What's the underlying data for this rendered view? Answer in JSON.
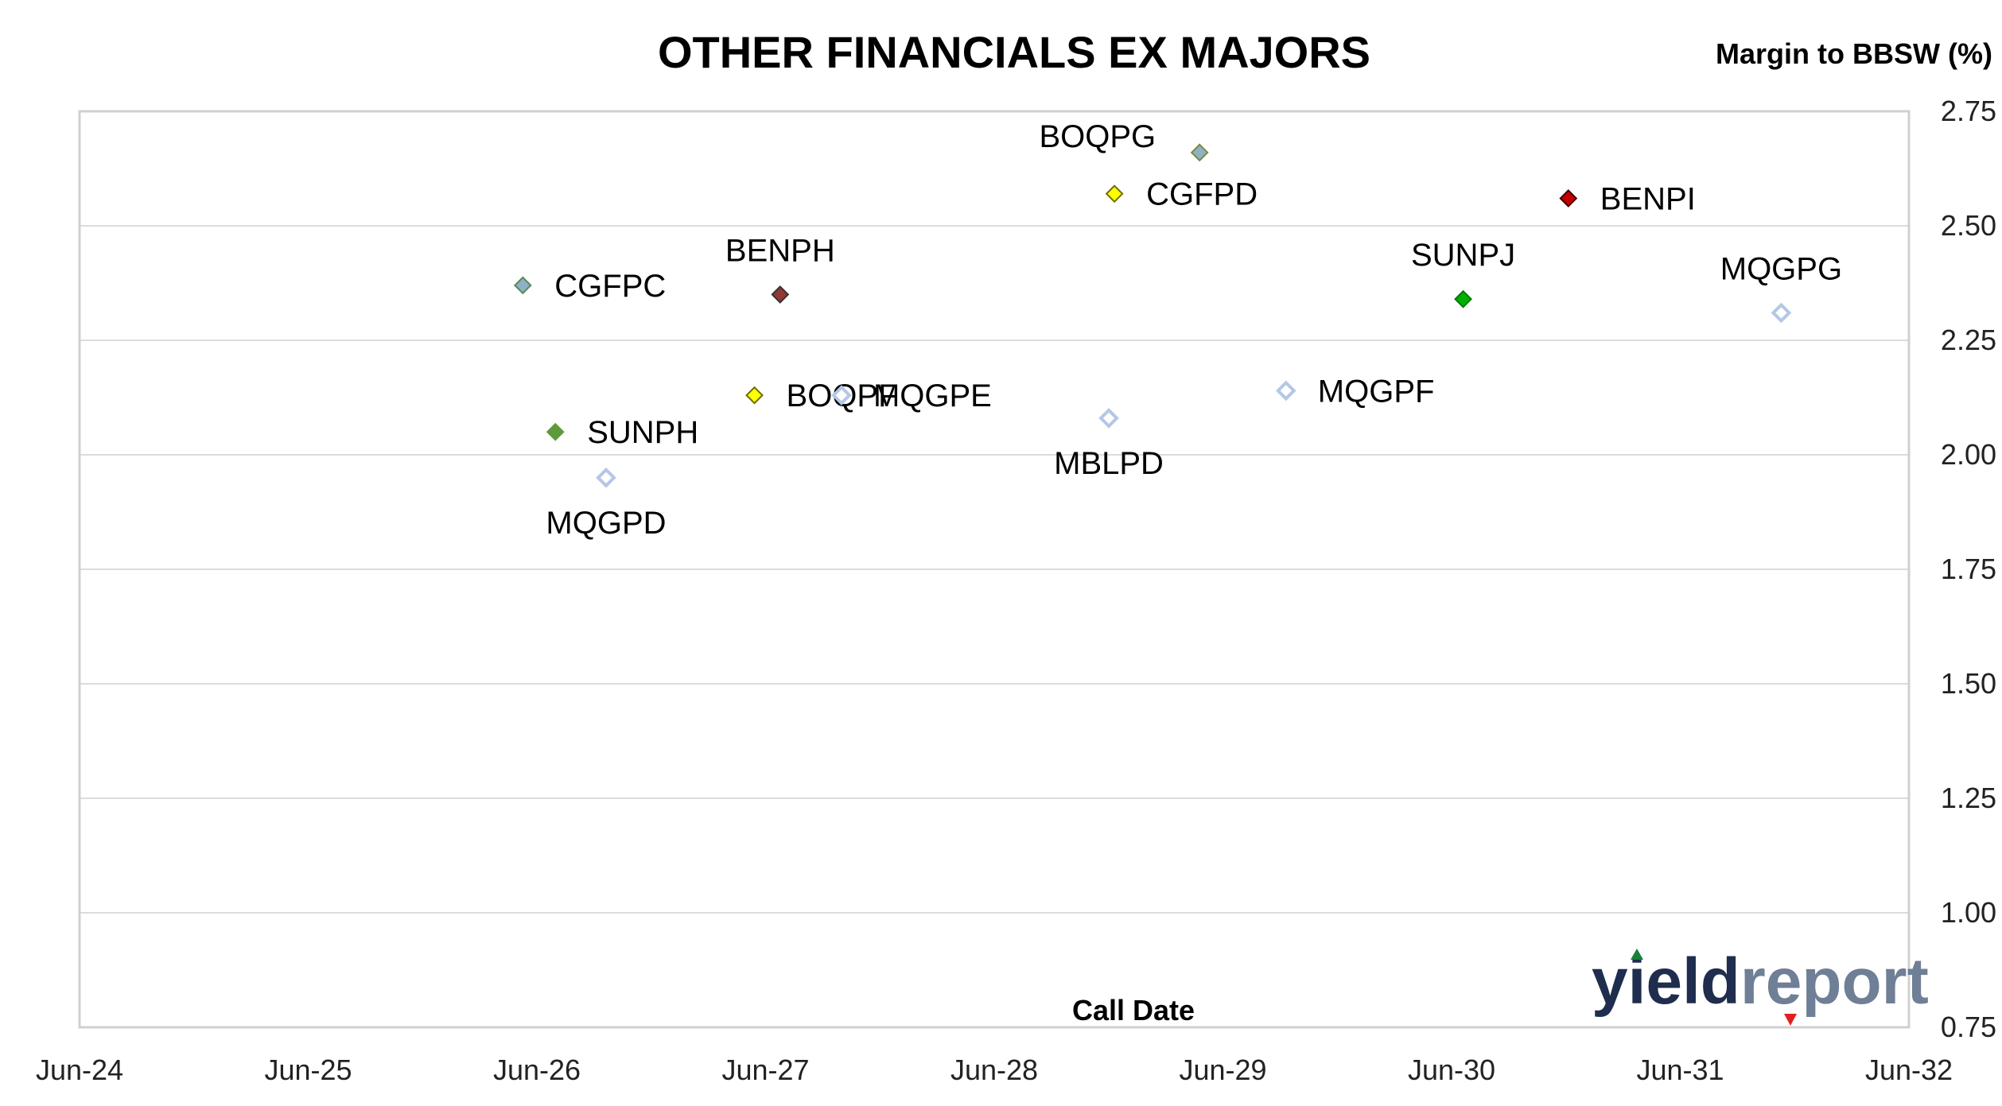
{
  "chart_data": {
    "type": "scatter",
    "title": "OTHER FINANCIALS EX MAJORS",
    "xlabel": "Call Date",
    "ylabel": "Margin to BBSW (%)",
    "x_axis": {
      "type": "date",
      "min": "2024-06",
      "max": "2032-06",
      "ticks": [
        "Jun-24",
        "Jun-25",
        "Jun-26",
        "Jun-27",
        "Jun-28",
        "Jun-29",
        "Jun-30",
        "Jun-31",
        "Jun-32"
      ]
    },
    "y_axis": {
      "position": "right",
      "min": 0.75,
      "max": 2.75,
      "ticks": [
        "0.75",
        "1.00",
        "1.25",
        "1.50",
        "1.75",
        "2.00",
        "2.25",
        "2.50",
        "2.75"
      ]
    },
    "grid": "horizontal",
    "points": [
      {
        "label": "CGFPC",
        "x": "2026-05-10",
        "y": 2.37,
        "color": "#8fb0c8",
        "outline": "#5a8a5a",
        "hollow": false,
        "label_pos": "right"
      },
      {
        "label": "SUNPH",
        "x": "2026-07-01",
        "y": 2.05,
        "color": "#5f9a3a",
        "outline": "#5f9a3a",
        "hollow": false,
        "label_pos": "right"
      },
      {
        "label": "MQGPD",
        "x": "2026-09-20",
        "y": 1.95,
        "color": "#ffffff",
        "outline": "#b4c7e7",
        "hollow": true,
        "label_pos": "below"
      },
      {
        "label": "BOQPF",
        "x": "2027-05-15",
        "y": 2.13,
        "color": "#ffff00",
        "outline": "#6f6f00",
        "hollow": false,
        "label_pos": "right"
      },
      {
        "label": "BENPH",
        "x": "2027-06-25",
        "y": 2.35,
        "color": "#943634",
        "outline": "#333333",
        "hollow": false,
        "label_pos": "above"
      },
      {
        "label": "MQGPE",
        "x": "2027-10-01",
        "y": 2.13,
        "color": "#ffffff",
        "outline": "#b4c7e7",
        "hollow": true,
        "label_pos": "right"
      },
      {
        "label": "MBLPD",
        "x": "2028-12-01",
        "y": 2.08,
        "color": "#ffffff",
        "outline": "#b4c7e7",
        "hollow": true,
        "label_pos": "below"
      },
      {
        "label": "CGFPD",
        "x": "2028-12-10",
        "y": 2.57,
        "color": "#ffff00",
        "outline": "#6f6f00",
        "hollow": false,
        "label_pos": "right"
      },
      {
        "label": "BOQPG",
        "x": "2029-04-25",
        "y": 2.66,
        "color": "#8fb0c8",
        "outline": "#7a8a3a",
        "hollow": false,
        "label_pos": "left-above"
      },
      {
        "label": "MQGPF",
        "x": "2029-09-10",
        "y": 2.14,
        "color": "#ffffff",
        "outline": "#b4c7e7",
        "hollow": true,
        "label_pos": "right"
      },
      {
        "label": "SUNPJ",
        "x": "2030-06-20",
        "y": 2.34,
        "color": "#00b000",
        "outline": "#007a00",
        "hollow": false,
        "label_pos": "above"
      },
      {
        "label": "BENPI",
        "x": "2030-12-05",
        "y": 2.56,
        "color": "#c00000",
        "outline": "#400000",
        "hollow": false,
        "label_pos": "right"
      },
      {
        "label": "MQGPG",
        "x": "2031-11-10",
        "y": 2.31,
        "color": "#ffffff",
        "outline": "#b4c7e7",
        "hollow": true,
        "label_pos": "above"
      }
    ]
  },
  "logo": {
    "part1": "yield",
    "part2": "report",
    "colors": {
      "dark": "#1f2d4e",
      "light": "#6e7f96",
      "up": "#1a7f3a",
      "down": "#e02020"
    }
  }
}
